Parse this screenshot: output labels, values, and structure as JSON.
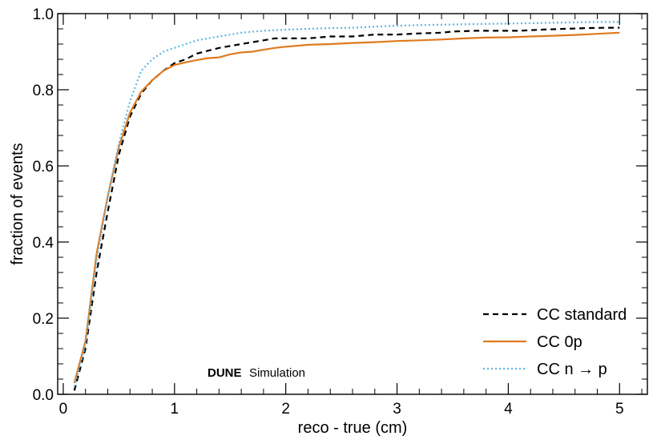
{
  "chart_data": {
    "type": "line",
    "title": "",
    "xlabel": "reco - true (cm)",
    "ylabel": "fraction of events",
    "xlim": [
      -0.05,
      5.25
    ],
    "ylim": [
      0.0,
      1.0
    ],
    "xticks": [
      "0",
      "1",
      "2",
      "3",
      "4",
      "5"
    ],
    "yticks": [
      "0.0",
      "0.2",
      "0.4",
      "0.6",
      "0.8",
      "1.0"
    ],
    "grid": false,
    "legend_position": "bottom-right",
    "annotation": {
      "bold": "DUNE",
      "regular": "Simulation"
    },
    "series": [
      {
        "name": "CC standard",
        "color": "#000000",
        "style": "dashed",
        "x": [
          0.1,
          0.2,
          0.3,
          0.4,
          0.5,
          0.6,
          0.7,
          0.8,
          0.9,
          1.0,
          1.1,
          1.2,
          1.4,
          1.6,
          1.8,
          1.9,
          2.0,
          2.2,
          2.4,
          2.6,
          2.8,
          3.0,
          3.2,
          3.4,
          3.5,
          3.7,
          3.9,
          4.1,
          4.3,
          4.5,
          4.7,
          4.9,
          5.0
        ],
        "y": [
          0.01,
          0.12,
          0.32,
          0.48,
          0.63,
          0.73,
          0.79,
          0.825,
          0.85,
          0.87,
          0.88,
          0.895,
          0.91,
          0.92,
          0.93,
          0.935,
          0.935,
          0.935,
          0.94,
          0.94,
          0.945,
          0.945,
          0.948,
          0.95,
          0.953,
          0.955,
          0.955,
          0.955,
          0.958,
          0.96,
          0.962,
          0.963,
          0.963
        ]
      },
      {
        "name": "CC 0p",
        "color": "#e07a1f",
        "style": "solid",
        "x": [
          0.1,
          0.2,
          0.3,
          0.4,
          0.5,
          0.6,
          0.7,
          0.8,
          0.9,
          1.0,
          1.1,
          1.2,
          1.3,
          1.4,
          1.5,
          1.6,
          1.7,
          1.8,
          1.9,
          2.0,
          2.2,
          2.4,
          2.6,
          2.8,
          3.0,
          3.2,
          3.4,
          3.6,
          3.8,
          4.0,
          4.2,
          4.4,
          4.6,
          4.8,
          5.0
        ],
        "y": [
          0.03,
          0.14,
          0.37,
          0.52,
          0.65,
          0.74,
          0.795,
          0.825,
          0.85,
          0.865,
          0.872,
          0.878,
          0.883,
          0.885,
          0.893,
          0.898,
          0.9,
          0.905,
          0.91,
          0.913,
          0.918,
          0.92,
          0.923,
          0.925,
          0.928,
          0.93,
          0.932,
          0.935,
          0.937,
          0.938,
          0.94,
          0.942,
          0.944,
          0.947,
          0.95
        ]
      },
      {
        "name": "CC n → p",
        "color": "#5bb8e6",
        "style": "dotted",
        "x": [
          0.1,
          0.2,
          0.3,
          0.4,
          0.5,
          0.6,
          0.7,
          0.8,
          0.9,
          1.0,
          1.1,
          1.2,
          1.4,
          1.6,
          1.8,
          2.0,
          2.2,
          2.4,
          2.6,
          2.8,
          3.0,
          3.2,
          3.4,
          3.6,
          3.8,
          4.0,
          4.2,
          4.4,
          4.6,
          4.8,
          5.0
        ],
        "y": [
          0.02,
          0.13,
          0.35,
          0.52,
          0.66,
          0.77,
          0.85,
          0.88,
          0.9,
          0.91,
          0.92,
          0.93,
          0.94,
          0.95,
          0.955,
          0.958,
          0.96,
          0.962,
          0.963,
          0.966,
          0.968,
          0.97,
          0.971,
          0.972,
          0.973,
          0.974,
          0.975,
          0.976,
          0.977,
          0.978,
          0.978
        ]
      }
    ]
  }
}
